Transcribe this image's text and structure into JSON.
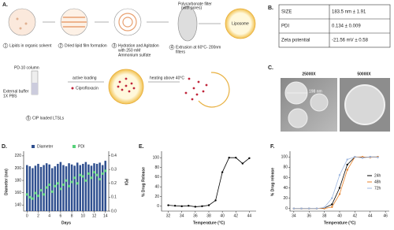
{
  "panel_a": {
    "label": "A.",
    "steps": [
      {
        "number": "1",
        "lines": [
          "Lipids in organic solvent"
        ]
      },
      {
        "number": "2",
        "lines": [
          "Dried lipid film formation"
        ]
      },
      {
        "number": "3",
        "lines": [
          "Hydration and Agitation",
          "with 250 mM",
          "Ammonium sulfate"
        ]
      },
      {
        "number": "4",
        "lines": [
          "Extrusion at 60°C- 200nm",
          "filters"
        ]
      },
      {
        "number": "5",
        "lines": [
          "CIP loaded LTSLs"
        ]
      }
    ],
    "filter_label": [
      "Polycarbonate filter",
      "(with pores)"
    ],
    "liposome": "Liposome",
    "column": "PD-10 column",
    "buffer": [
      "External buffer",
      "1X PBS"
    ],
    "active_loading": "active loading",
    "drug": "Ciprofloxacin",
    "heating": "heating above 40°C"
  },
  "panel_b": {
    "label": "B.",
    "rows": [
      [
        "SIZE",
        "183.5 nm ± 1.91"
      ],
      [
        "PDI",
        "0.134 ± 0.009"
      ],
      [
        "Zeta potential",
        "-21.56 mV ± 0.58"
      ]
    ]
  },
  "panel_c": {
    "label": "C.",
    "magnifications": [
      "25000X",
      "50000X"
    ],
    "scale": "198 nm"
  },
  "chart_data": [
    {
      "type": "bar",
      "label": "D.",
      "x_label": "Days",
      "y_label": "Diameter (nm)",
      "y2_label": "PDI",
      "legend": "top",
      "x": [
        0,
        0.5,
        1,
        1.5,
        2,
        2.5,
        3,
        3.5,
        4,
        4.5,
        5,
        5.5,
        6,
        6.5,
        7,
        7.5,
        8,
        8.5,
        9,
        9.5,
        10,
        10.5,
        11,
        11.5,
        12,
        12.5,
        13,
        13.5,
        14
      ],
      "series": [
        {
          "name": "Diameter",
          "color": "#2f4f8f",
          "values": [
            205,
            203,
            200,
            204,
            207,
            202,
            205,
            208,
            206,
            200,
            203,
            207,
            210,
            205,
            203,
            208,
            206,
            204,
            209,
            205,
            207,
            210,
            206,
            204,
            208,
            207,
            209,
            205,
            212
          ]
        },
        {
          "name": "PDI",
          "color": "#57d27a",
          "style": "points",
          "axis": "y2",
          "values": [
            0.12,
            0.1,
            0.09,
            0.13,
            0.11,
            0.15,
            0.12,
            0.17,
            0.19,
            0.14,
            0.18,
            0.2,
            0.16,
            0.19,
            0.22,
            0.18,
            0.21,
            0.24,
            0.2,
            0.26,
            0.25,
            0.22,
            0.27,
            0.24,
            0.28,
            0.26,
            0.23,
            0.27,
            0.29
          ]
        }
      ],
      "xlim": [
        -0.6,
        14.6
      ],
      "xticks": [
        0,
        2,
        4,
        6,
        8,
        10,
        12,
        14
      ],
      "ylim": [
        130,
        225
      ],
      "yticks": [
        140,
        160,
        180,
        200,
        220
      ],
      "y2lim": [
        0,
        0.42
      ],
      "y2ticks": [
        {
          "value": 0,
          "label": "0.0"
        },
        0.1,
        0.2,
        0.3,
        0.4
      ]
    },
    {
      "type": "line",
      "label": "E.",
      "x_label": "Temperature (°C)",
      "y_label": "% Drug Release",
      "color": "#000000",
      "x": [
        32,
        33,
        34,
        35,
        36,
        37,
        38,
        39,
        40,
        41,
        42,
        43,
        44
      ],
      "values": [
        2,
        1,
        0,
        1,
        -1,
        0,
        2,
        12,
        70,
        100,
        100,
        88,
        99
      ],
      "xlim": [
        31,
        45
      ],
      "xticks": [
        32,
        34,
        36,
        38,
        40,
        42,
        44
      ],
      "ylim": [
        -10,
        110
      ],
      "yticks": [
        0,
        20,
        40,
        60,
        80,
        100
      ]
    },
    {
      "type": "line",
      "label": "F.",
      "x_label": "Temperature (°C)",
      "y_label": "% Drug release",
      "legend": "right",
      "x": [
        34,
        35,
        36,
        37,
        38,
        39,
        40,
        41,
        42,
        43,
        44,
        45
      ],
      "series": [
        {
          "name": "24h",
          "color": "#000000",
          "values": [
            0,
            0,
            0,
            0,
            1,
            8,
            40,
            85,
            100,
            99,
            100,
            100
          ]
        },
        {
          "name": "48h",
          "color": "#e8822a",
          "values": [
            0,
            0,
            0,
            0,
            0,
            3,
            28,
            75,
            100,
            100,
            99,
            100
          ]
        },
        {
          "name": "72h",
          "color": "#9fb8e0",
          "values": [
            0,
            0,
            0,
            0,
            2,
            20,
            65,
            95,
            100,
            98,
            100,
            99
          ]
        }
      ],
      "xlim": [
        33.5,
        46.5
      ],
      "xticks": [
        34,
        36,
        38,
        40,
        42,
        44,
        46
      ],
      "ylim": [
        -5,
        108
      ],
      "yticks": [
        0,
        20,
        40,
        60,
        80,
        100
      ]
    }
  ]
}
